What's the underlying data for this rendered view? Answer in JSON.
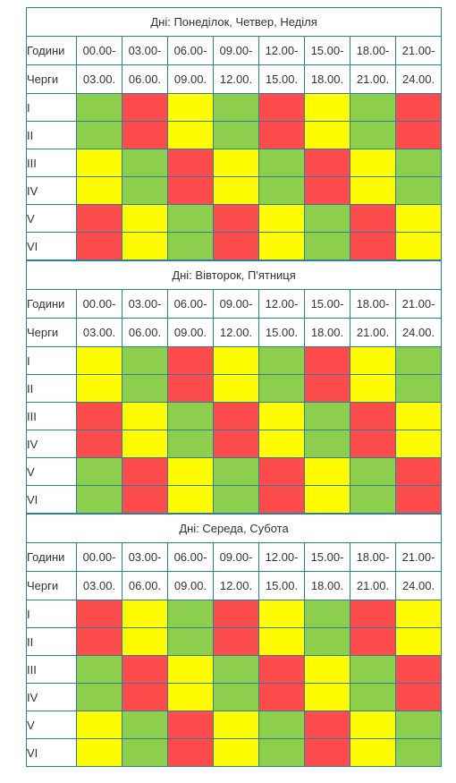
{
  "columns": {
    "from": [
      "00.00-",
      "03.00-",
      "06.00-",
      "09.00-",
      "12.00-",
      "15.00-",
      "18.00-",
      "21.00-"
    ],
    "to": [
      "03.00.",
      "06.00.",
      "09.00.",
      "12.00.",
      "15.00.",
      "18.00.",
      "21.00.",
      "24.00."
    ]
  },
  "labels": {
    "hours": "Години",
    "queues": "Черги"
  },
  "colors": {
    "red": "#fe4b4b",
    "yellow": "#fffb00",
    "green": "#8dcf4d"
  },
  "blocks": [
    {
      "title": "Дні: Понеділок, Четвер, Неділя",
      "rows": [
        {
          "queue": "I",
          "cells": [
            "green",
            "red",
            "yellow",
            "green",
            "red",
            "yellow",
            "green",
            "red"
          ]
        },
        {
          "queue": "II",
          "cells": [
            "green",
            "red",
            "yellow",
            "green",
            "red",
            "yellow",
            "green",
            "red"
          ]
        },
        {
          "queue": "III",
          "cells": [
            "yellow",
            "green",
            "red",
            "yellow",
            "green",
            "red",
            "yellow",
            "green"
          ]
        },
        {
          "queue": "IV",
          "cells": [
            "yellow",
            "green",
            "red",
            "yellow",
            "green",
            "red",
            "yellow",
            "green"
          ]
        },
        {
          "queue": "V",
          "cells": [
            "red",
            "yellow",
            "green",
            "red",
            "yellow",
            "green",
            "red",
            "yellow"
          ]
        },
        {
          "queue": "VI",
          "cells": [
            "red",
            "yellow",
            "green",
            "red",
            "yellow",
            "green",
            "red",
            "yellow"
          ]
        }
      ]
    },
    {
      "title": "Дні: Вівторок, П'ятниця",
      "rows": [
        {
          "queue": "I",
          "cells": [
            "yellow",
            "green",
            "red",
            "yellow",
            "green",
            "red",
            "yellow",
            "green"
          ]
        },
        {
          "queue": "II",
          "cells": [
            "yellow",
            "green",
            "red",
            "yellow",
            "green",
            "red",
            "yellow",
            "green"
          ]
        },
        {
          "queue": "III",
          "cells": [
            "red",
            "yellow",
            "green",
            "red",
            "yellow",
            "green",
            "red",
            "yellow"
          ]
        },
        {
          "queue": "IV",
          "cells": [
            "red",
            "yellow",
            "green",
            "red",
            "yellow",
            "green",
            "red",
            "yellow"
          ]
        },
        {
          "queue": "V",
          "cells": [
            "green",
            "red",
            "yellow",
            "green",
            "red",
            "yellow",
            "green",
            "red"
          ]
        },
        {
          "queue": "VI",
          "cells": [
            "green",
            "red",
            "yellow",
            "green",
            "red",
            "yellow",
            "green",
            "red"
          ]
        }
      ]
    },
    {
      "title": "Дні: Середа, Субота",
      "rows": [
        {
          "queue": "I",
          "cells": [
            "red",
            "yellow",
            "green",
            "red",
            "yellow",
            "green",
            "red",
            "yellow"
          ]
        },
        {
          "queue": "II",
          "cells": [
            "red",
            "yellow",
            "green",
            "red",
            "yellow",
            "green",
            "red",
            "yellow"
          ]
        },
        {
          "queue": "III",
          "cells": [
            "green",
            "red",
            "yellow",
            "green",
            "red",
            "yellow",
            "green",
            "red"
          ]
        },
        {
          "queue": "IV",
          "cells": [
            "green",
            "red",
            "yellow",
            "green",
            "red",
            "yellow",
            "green",
            "red"
          ]
        },
        {
          "queue": "V",
          "cells": [
            "yellow",
            "green",
            "red",
            "yellow",
            "green",
            "red",
            "yellow",
            "green"
          ]
        },
        {
          "queue": "VI",
          "cells": [
            "yellow",
            "green",
            "red",
            "yellow",
            "green",
            "red",
            "yellow",
            "green"
          ]
        }
      ]
    }
  ]
}
